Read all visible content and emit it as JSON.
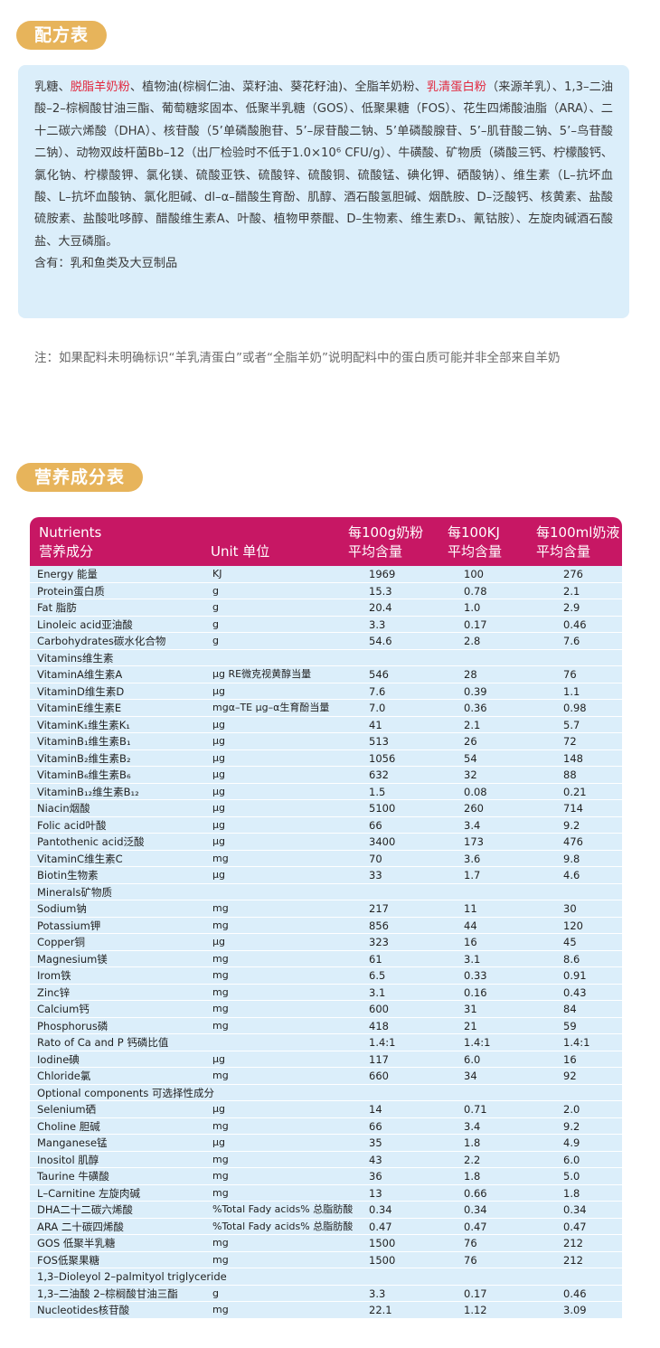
{
  "formula_section": {
    "title": "配方表",
    "ingredients_segments": [
      {
        "text": "乳糖、",
        "highlight": false
      },
      {
        "text": "脱脂羊奶粉",
        "highlight": true
      },
      {
        "text": "、植物油(棕榈仁油、菜籽油、葵花籽油)、全脂羊奶粉、",
        "highlight": false
      },
      {
        "text": "乳清蛋白粉",
        "highlight": true
      },
      {
        "text": "（来源羊乳）、1,3–二油酸–2–棕榈酸甘油三酯、葡萄糖浆固本、低聚半乳糖（GOS）、低聚果糖（FOS）、花生四烯酸油脂（ARA）、二十二碳六烯酸（DHA）、核苷酸（5’单磷酸胞苷、5’–尿苷酸二钠、5’单磷酸腺苷、5’–肌苷酸二钠、5’–鸟苷酸二钠）、动物双歧杆菌Bb–12（出厂检验时不低于1.0×10⁶ CFU/g）、牛磺酸、矿物质（磷酸三钙、柠檬酸钙、氯化钠、柠檬酸钾、氯化镁、硫酸亚铁、硫酸锌、硫酸铜、硫酸锰、碘化钾、硒酸钠）、维生素（L–抗坏血酸、L–抗坏血酸钠、氯化胆碱、dl–α–醋酸生育酚、肌醇、酒石酸氢胆碱、烟酰胺、D–泛酸钙、核黄素、盐酸硫胺素、盐酸吡哆醇、醋酸维生素A、叶酸、植物甲萘醌、D–生物素、维生素D₃、氰钴胺）、左旋肉碱酒石酸盐、大豆磷脂。",
        "highlight": false
      }
    ],
    "contains": "含有：乳和鱼类及大豆制品",
    "note": "注：如果配料未明确标识“羊乳清蛋白”或者“全脂羊奶”说明配料中的蛋白质可能并非全部来自羊奶"
  },
  "nutrition_section": {
    "title": "营养成分表",
    "header": {
      "nutrients_en": "Nutrients",
      "nutrients_cn": "营养成分",
      "unit": "Unit 单位",
      "per100g_line1": "每100g奶粉",
      "per100g_line2": "平均含量",
      "per100kj_line1": "每100KJ",
      "per100kj_line2": "平均含量",
      "per100ml_line1": "每100ml奶液",
      "per100ml_line2": "平均含量"
    },
    "rows": [
      [
        "Energy 能量",
        "KJ",
        "1969",
        "100",
        "276"
      ],
      [
        "Protein蛋白质",
        "g",
        "15.3",
        "0.78",
        "2.1"
      ],
      [
        "Fat 脂肪",
        "g",
        "20.4",
        "1.0",
        "2.9"
      ],
      [
        "Linoleic acid亚油酸",
        "g",
        "3.3",
        "0.17",
        "0.46"
      ],
      [
        "Carbohydrates碳水化合物",
        "g",
        "54.6",
        "2.8",
        "7.6"
      ],
      [
        "Vitamins维生素",
        "",
        "",
        "",
        ""
      ],
      [
        "VitaminA维生素A",
        "μg RE微克视黄醇当量",
        "546",
        "28",
        "76"
      ],
      [
        "VitaminD维生素D",
        "μg",
        "7.6",
        "0.39",
        "1.1"
      ],
      [
        "VitaminE维生素E",
        "mgα–TE μg–α生育酚当量",
        "7.0",
        "0.36",
        "0.98"
      ],
      [
        "VitaminK₁维生素K₁",
        "μg",
        "41",
        "2.1",
        "5.7"
      ],
      [
        "VitaminB₁维生素B₁",
        "μg",
        "513",
        "26",
        "72"
      ],
      [
        "VitaminB₂维生素B₂",
        "μg",
        "1056",
        "54",
        "148"
      ],
      [
        "VitaminB₆维生素B₆",
        "μg",
        "632",
        "32",
        "88"
      ],
      [
        "VitaminB₁₂维生素B₁₂",
        "μg",
        "1.5",
        "0.08",
        "0.21"
      ],
      [
        "Niacin烟酸",
        "μg",
        "5100",
        "260",
        "714"
      ],
      [
        "Folic acid叶酸",
        "μg",
        "66",
        "3.4",
        "9.2"
      ],
      [
        "Pantothenic acid泛酸",
        "μg",
        "3400",
        "173",
        "476"
      ],
      [
        "VitaminC维生素C",
        "mg",
        "70",
        "3.6",
        "9.8"
      ],
      [
        "Biotin生物素",
        "μg",
        "33",
        "1.7",
        "4.6"
      ],
      [
        "Minerals矿物质",
        "",
        "",
        "",
        ""
      ],
      [
        "Sodium钠",
        "mg",
        "217",
        "11",
        "30"
      ],
      [
        "Potassium钾",
        "mg",
        "856",
        "44",
        "120"
      ],
      [
        "Copper铜",
        "μg",
        "323",
        "16",
        "45"
      ],
      [
        "Magnesium镁",
        "mg",
        "61",
        "3.1",
        "8.6"
      ],
      [
        "Irom铁",
        "mg",
        "6.5",
        "0.33",
        "0.91"
      ],
      [
        "Zinc锌",
        "mg",
        "3.1",
        "0.16",
        "0.43"
      ],
      [
        "Calcium钙",
        "mg",
        "600",
        "31",
        "84"
      ],
      [
        "Phosphorus磷",
        "mg",
        "418",
        "21",
        "59"
      ],
      [
        "Rato of Ca and P 钙磷比值",
        "",
        "1.4:1",
        "1.4:1",
        "1.4:1"
      ],
      [
        "Iodine碘",
        "μg",
        "117",
        "6.0",
        "16"
      ],
      [
        "Chloride氯",
        "mg",
        "660",
        "34",
        "92"
      ],
      [
        "Optional components 可选择性成分",
        "",
        "",
        "",
        ""
      ],
      [
        "Selenium硒",
        "μg",
        "14",
        "0.71",
        "2.0"
      ],
      [
        "Choline 胆碱",
        "mg",
        "66",
        "3.4",
        "9.2"
      ],
      [
        "Manganese锰",
        "μg",
        "35",
        "1.8",
        "4.9"
      ],
      [
        "Inositol 肌醇",
        "mg",
        "43",
        "2.2",
        "6.0"
      ],
      [
        "Taurine 牛磺酸",
        "mg",
        "36",
        "1.8",
        "5.0"
      ],
      [
        "L–Carnitine 左旋肉碱",
        "mg",
        "13",
        "0.66",
        "1.8"
      ],
      [
        "DHA二十二碳六烯酸",
        "%Total Fady acids% 总脂肪酸",
        "0.34",
        "0.34",
        "0.34"
      ],
      [
        "ARA 二十碳四烯酸",
        "%Total Fady acids% 总脂肪酸",
        "0.47",
        "0.47",
        "0.47"
      ],
      [
        "GOS 低聚半乳糖",
        "mg",
        "1500",
        "76",
        "212"
      ],
      [
        "FOS低聚果糖",
        "mg",
        "1500",
        "76",
        "212"
      ],
      [
        "1,3–Dioleyol 2–palmityol triglyceride",
        "",
        "",
        "",
        ""
      ],
      [
        "1,3–二油酸 2–棕榈酸甘油三酯",
        "g",
        "3.3",
        "0.17",
        "0.46"
      ],
      [
        "Nucleotides核苷酸",
        "mg",
        "22.1",
        "1.12",
        "3.09"
      ]
    ]
  }
}
